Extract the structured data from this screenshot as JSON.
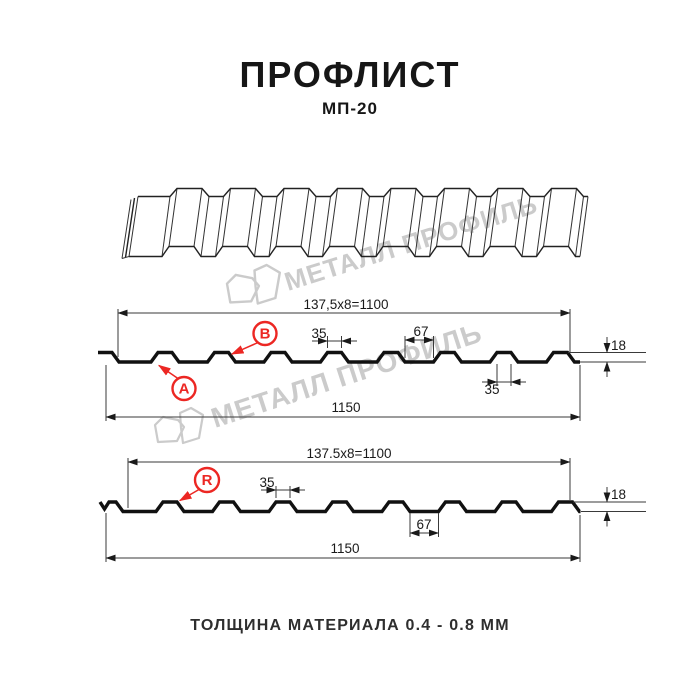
{
  "page": {
    "title": "ПРОФЛИСТ",
    "subtitle": "МП-20",
    "footer": "ТОЛЩИНА МАТЕРИАЛА 0.4 - 0.8 ММ"
  },
  "watermark": {
    "brand": "МЕТАЛЛ ПРОФИЛЬ"
  },
  "colors": {
    "accent": "#ec2723",
    "ink": "#1a1a1a",
    "watermark": "#cbcbcb"
  },
  "profile_top": {
    "side_a": "A",
    "side_b": "B",
    "dim_module": "137,5x8=1100",
    "dim_overall": "1150",
    "dim_crest_top": "35",
    "dim_valley": "67",
    "dim_height": "18",
    "dim_crest_bottom": "35"
  },
  "profile_bottom": {
    "side_r": "R",
    "dim_module": "137.5x8=1100",
    "dim_overall": "1150",
    "dim_crest": "35",
    "dim_valley": "67",
    "dim_height": "18"
  }
}
